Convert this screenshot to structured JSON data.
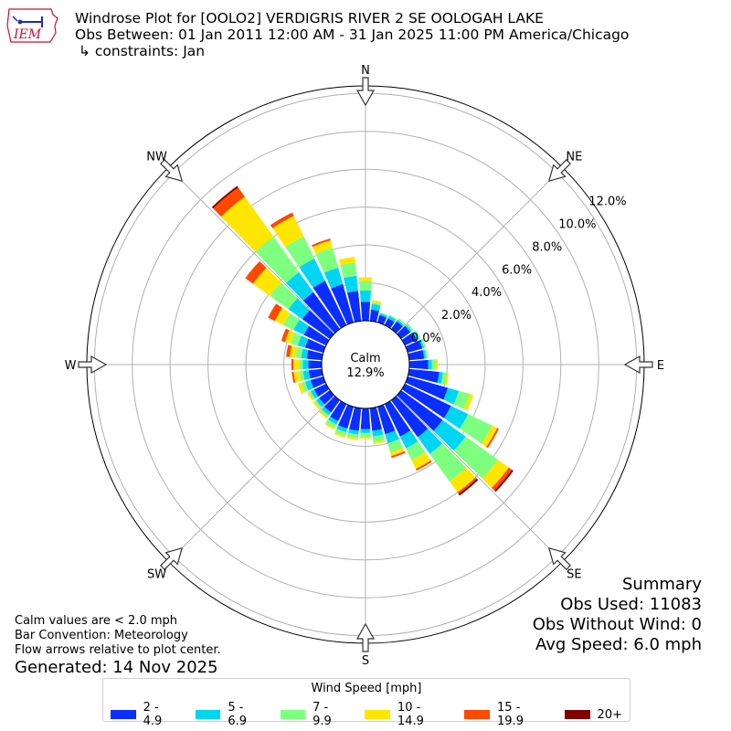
{
  "header": {
    "title": "Windrose Plot for [OOLO2] VERDIGRIS RIVER 2 SE OOLOGAH LAKE",
    "subtitle": "Obs Between: 01 Jan 2011 12:00 AM - 31 Jan 2025 11:00 PM America/Chicago",
    "constraints": "↳ constraints: Jan",
    "logo_text": "IEM"
  },
  "summary": {
    "heading": "Summary",
    "obs_used": "Obs Used: 11083",
    "obs_without_wind": "Obs Without Wind: 0",
    "avg_speed": "Avg Speed: 6.0 mph"
  },
  "notes": {
    "calm_note": "Calm values are < 2.0 mph",
    "bar_convention": "Bar Convention: Meteorology",
    "flow_arrows": "Flow arrows relative to plot center.",
    "generated": "Generated: 14 Nov 2025"
  },
  "chart_data": {
    "type": "windrose",
    "calm_label": "Calm",
    "calm_value": "12.9%",
    "calm_percent": 12.9,
    "compass_labels": [
      "N",
      "NE",
      "E",
      "SE",
      "S",
      "SW",
      "W",
      "NW"
    ],
    "radial_ticks": [
      "0.0%",
      "2.0%",
      "4.0%",
      "6.0%",
      "8.0%",
      "10.0%",
      "12.0%"
    ],
    "radial_range": [
      0,
      12.4
    ],
    "legend_title": "Wind Speed [mph]",
    "legend_labels": [
      "2 - 4.9",
      "5 - 6.9",
      "7 - 9.9",
      "10 - 14.9",
      "15 - 19.9",
      "20+"
    ],
    "colors": [
      "#0a2eff",
      "#00d6f2",
      "#7fff7f",
      "#ffe600",
      "#ff4800",
      "#800000"
    ],
    "directions_deg": [
      0,
      10,
      20,
      30,
      40,
      50,
      60,
      70,
      80,
      90,
      100,
      110,
      120,
      130,
      140,
      150,
      160,
      170,
      180,
      190,
      200,
      210,
      220,
      230,
      240,
      250,
      260,
      270,
      280,
      290,
      300,
      310,
      320,
      330,
      340,
      350
    ],
    "cumulative_percent": [
      [
        1.0,
        1.6,
        2.1,
        2.3,
        2.3,
        2.3
      ],
      [
        0.6,
        0.9,
        1.0,
        1.1,
        1.1,
        1.1
      ],
      [
        0.4,
        0.5,
        0.55,
        0.55,
        0.55,
        0.55
      ],
      [
        0.4,
        0.55,
        0.6,
        0.6,
        0.6,
        0.6
      ],
      [
        0.5,
        0.6,
        0.7,
        0.7,
        0.7,
        0.7
      ],
      [
        0.6,
        0.7,
        0.8,
        0.8,
        0.8,
        0.8
      ],
      [
        0.7,
        0.8,
        0.9,
        0.9,
        0.9,
        0.9
      ],
      [
        0.8,
        0.9,
        1.0,
        1.0,
        1.0,
        1.0
      ],
      [
        0.8,
        0.9,
        1.0,
        1.0,
        1.0,
        1.0
      ],
      [
        1.0,
        1.2,
        1.4,
        1.5,
        1.5,
        1.5
      ],
      [
        1.6,
        1.8,
        2.0,
        2.1,
        2.1,
        2.1
      ],
      [
        2.2,
        2.8,
        3.4,
        3.6,
        3.6,
        3.6
      ],
      [
        2.7,
        3.7,
        5.1,
        5.4,
        5.5,
        5.5
      ],
      [
        2.7,
        4.2,
        6.3,
        7.0,
        7.2,
        7.3
      ],
      [
        2.4,
        3.5,
        5.3,
        6.0,
        6.1,
        6.2
      ],
      [
        1.9,
        2.6,
        3.3,
        3.8,
        3.9,
        3.9
      ],
      [
        1.5,
        2.0,
        2.5,
        2.7,
        2.8,
        2.8
      ],
      [
        1.2,
        1.5,
        1.8,
        1.9,
        1.9,
        1.9
      ],
      [
        1.1,
        1.3,
        1.5,
        1.6,
        1.6,
        1.6
      ],
      [
        1.2,
        1.4,
        1.6,
        1.7,
        1.7,
        1.7
      ],
      [
        1.2,
        1.4,
        1.6,
        1.7,
        1.7,
        1.7
      ],
      [
        1.0,
        1.2,
        1.4,
        1.5,
        1.5,
        1.5
      ],
      [
        0.8,
        1.0,
        1.1,
        1.2,
        1.2,
        1.2
      ],
      [
        0.7,
        0.9,
        1.0,
        1.1,
        1.1,
        1.1
      ],
      [
        0.7,
        0.9,
        1.0,
        1.1,
        1.1,
        1.1
      ],
      [
        0.7,
        1.0,
        1.2,
        1.4,
        1.4,
        1.4
      ],
      [
        0.7,
        1.0,
        1.2,
        1.5,
        1.6,
        1.6
      ],
      [
        0.7,
        1.0,
        1.2,
        1.5,
        1.6,
        1.6
      ],
      [
        0.8,
        1.1,
        1.4,
        1.7,
        1.9,
        1.9
      ],
      [
        1.0,
        1.4,
        1.8,
        2.1,
        2.3,
        2.3
      ],
      [
        1.3,
        1.9,
        2.5,
        3.0,
        3.4,
        3.4
      ],
      [
        1.8,
        2.7,
        3.9,
        5.0,
        5.5,
        5.5
      ],
      [
        2.4,
        3.7,
        6.0,
        8.6,
        9.2,
        9.3
      ],
      [
        2.6,
        3.9,
        5.2,
        6.4,
        6.6,
        6.6
      ],
      [
        2.1,
        3.0,
        4.1,
        4.5,
        4.6,
        4.6
      ],
      [
        1.6,
        2.4,
        3.1,
        3.4,
        3.4,
        3.4
      ]
    ]
  }
}
